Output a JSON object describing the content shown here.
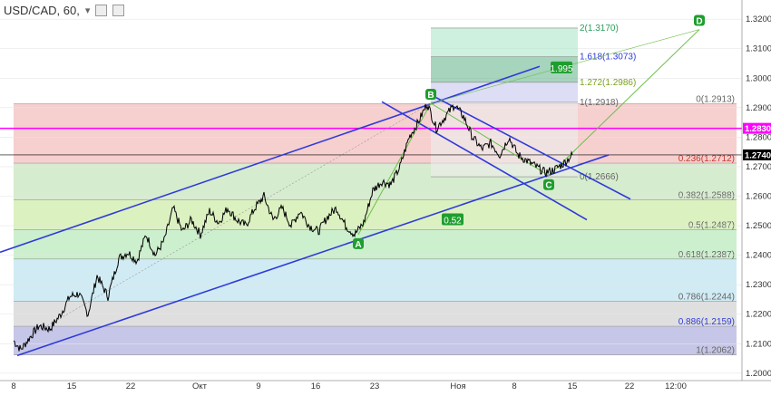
{
  "header": {
    "symbol_line": "USD/CAD, 60,",
    "icons": [
      "menu-arrow-icon",
      "box-icon",
      "box-icon"
    ]
  },
  "colors": {
    "price": "#000000",
    "channel": "#2f3bd8",
    "fibline": "#777777",
    "magenta": "#ff00ff",
    "green_label": "#1e9e2e",
    "axis_text": "#333333"
  },
  "chart_data": {
    "type": "line",
    "title": "USD/CAD, 60,",
    "xlabel": "",
    "ylabel": "",
    "x_ticks": [
      "8",
      "15",
      "22",
      "Окт",
      "9",
      "16",
      "23",
      "Ноя",
      "8",
      "15",
      "22",
      "12:00"
    ],
    "y_ticks": [
      "1.2000",
      "1.2100",
      "1.2200",
      "1.2300",
      "1.2400",
      "1.2500",
      "1.2600",
      "1.2700",
      "1.2800",
      "1.2900",
      "1.3000",
      "1.3100",
      "1.3200"
    ],
    "ylim": [
      1.1975,
      1.3265
    ],
    "price_tags": [
      {
        "value": 1.283,
        "label": "1.2830",
        "color": "#ff00ff"
      },
      {
        "value": 1.274,
        "label": "1.2740",
        "color": "#000000"
      }
    ],
    "fib_retracement": [
      {
        "label": "0(1.2913)",
        "value": 1.2913,
        "color": "#f4c7c7"
      },
      {
        "label": "0.236(1.2712)",
        "value": 1.2712,
        "color": "#cfe9c5"
      },
      {
        "label": "0.382(1.2588)",
        "value": 1.2588,
        "color": "#d5efb5"
      },
      {
        "label": "0.5(1.2487)",
        "value": 1.2487,
        "color": "#c3ecc6"
      },
      {
        "label": "0.618(1.2387)",
        "value": 1.2387,
        "color": "#c8e7f2"
      },
      {
        "label": "0.786(1.2244)",
        "value": 1.2244,
        "color": "#d9d9d9"
      },
      {
        "label": "0.886(1.2159)",
        "value": 1.2159,
        "color": "#bcbce4"
      },
      {
        "label": "1(1.2062)",
        "value": 1.2062,
        "color": "#bcbce4"
      }
    ],
    "fib_extension": [
      {
        "label": "2(1.3170)",
        "value": 1.317
      },
      {
        "label": "1.618(1.3073)",
        "value": 1.3073
      },
      {
        "label": "1.272(1.2986)",
        "value": 1.2986
      },
      {
        "label": "1(1.2918)",
        "value": 1.2918
      },
      {
        "label": "0(1.2666)",
        "value": 1.2666
      }
    ],
    "pattern_points": [
      {
        "label": "A",
        "value": 1.247
      },
      {
        "label": "B",
        "value": 1.2915
      },
      {
        "label": "C",
        "value": 1.267
      },
      {
        "label": "D",
        "value": 1.317
      }
    ],
    "ratio_labels": [
      "0.52",
      "1.995"
    ],
    "anchors": [
      {
        "t": 0,
        "v": 1.211
      },
      {
        "t": 4,
        "v": 1.208
      },
      {
        "t": 10,
        "v": 1.213
      },
      {
        "t": 14,
        "v": 1.216
      },
      {
        "t": 20,
        "v": 1.215
      },
      {
        "t": 26,
        "v": 1.22
      },
      {
        "t": 31,
        "v": 1.226
      },
      {
        "t": 36,
        "v": 1.227
      },
      {
        "t": 41,
        "v": 1.22
      },
      {
        "t": 46,
        "v": 1.233
      },
      {
        "t": 52,
        "v": 1.226
      },
      {
        "t": 58,
        "v": 1.239
      },
      {
        "t": 63,
        "v": 1.241
      },
      {
        "t": 68,
        "v": 1.238
      },
      {
        "t": 73,
        "v": 1.247
      },
      {
        "t": 78,
        "v": 1.24
      },
      {
        "t": 83,
        "v": 1.245
      },
      {
        "t": 88,
        "v": 1.256
      },
      {
        "t": 93,
        "v": 1.248
      },
      {
        "t": 98,
        "v": 1.252
      },
      {
        "t": 103,
        "v": 1.247
      },
      {
        "t": 108,
        "v": 1.255
      },
      {
        "t": 113,
        "v": 1.251
      },
      {
        "t": 118,
        "v": 1.256
      },
      {
        "t": 123,
        "v": 1.252
      },
      {
        "t": 128,
        "v": 1.25
      },
      {
        "t": 133,
        "v": 1.256
      },
      {
        "t": 138,
        "v": 1.26
      },
      {
        "t": 143,
        "v": 1.252
      },
      {
        "t": 148,
        "v": 1.256
      },
      {
        "t": 153,
        "v": 1.25
      },
      {
        "t": 158,
        "v": 1.255
      },
      {
        "t": 163,
        "v": 1.25
      },
      {
        "t": 168,
        "v": 1.248
      },
      {
        "t": 173,
        "v": 1.253
      },
      {
        "t": 178,
        "v": 1.256
      },
      {
        "t": 183,
        "v": 1.25
      },
      {
        "t": 188,
        "v": 1.247
      },
      {
        "t": 193,
        "v": 1.251
      },
      {
        "t": 198,
        "v": 1.262
      },
      {
        "t": 203,
        "v": 1.265
      },
      {
        "t": 208,
        "v": 1.264
      },
      {
        "t": 213,
        "v": 1.27
      },
      {
        "t": 218,
        "v": 1.28
      },
      {
        "t": 223,
        "v": 1.285
      },
      {
        "t": 228,
        "v": 1.2915
      },
      {
        "t": 233,
        "v": 1.283
      },
      {
        "t": 238,
        "v": 1.287
      },
      {
        "t": 243,
        "v": 1.291
      },
      {
        "t": 248,
        "v": 1.287
      },
      {
        "t": 253,
        "v": 1.28
      },
      {
        "t": 258,
        "v": 1.276
      },
      {
        "t": 263,
        "v": 1.278
      },
      {
        "t": 268,
        "v": 1.274
      },
      {
        "t": 273,
        "v": 1.28
      },
      {
        "t": 278,
        "v": 1.274
      },
      {
        "t": 283,
        "v": 1.272
      },
      {
        "t": 288,
        "v": 1.27
      },
      {
        "t": 293,
        "v": 1.268
      },
      {
        "t": 298,
        "v": 1.269
      },
      {
        "t": 303,
        "v": 1.271
      },
      {
        "t": 308,
        "v": 1.274
      }
    ]
  }
}
